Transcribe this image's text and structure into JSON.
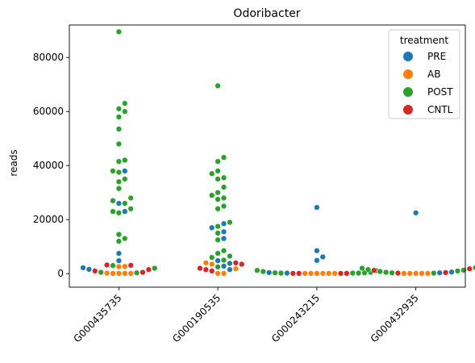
{
  "chart_data": {
    "type": "scatter",
    "subtype": "swarm",
    "title": "Odoribacter",
    "xlabel": "",
    "ylabel": "reads",
    "ylim": [
      -5000,
      92000
    ],
    "yticks": [
      0,
      20000,
      40000,
      60000,
      80000
    ],
    "ytick_labels": [
      "0",
      "20000",
      "40000",
      "60000",
      "80000"
    ],
    "categories": [
      "G000435735",
      "G000190535",
      "G000243215",
      "G000432935"
    ],
    "grid": false,
    "legend": {
      "title": "treatment",
      "position": "top-right",
      "entries": [
        {
          "name": "PRE",
          "color": "#1f77b4"
        },
        {
          "name": "AB",
          "color": "#ff7f0e"
        },
        {
          "name": "POST",
          "color": "#2ca02c"
        },
        {
          "name": "CNTL",
          "color": "#d62728"
        }
      ]
    },
    "series": [
      {
        "name": "PRE",
        "color": "#1f77b4",
        "points": [
          [
            0,
            38000
          ],
          [
            0,
            26000
          ],
          [
            0,
            23000
          ],
          [
            0,
            7500
          ],
          [
            0,
            4800
          ],
          [
            0,
            2200
          ],
          [
            0,
            1600
          ],
          [
            1,
            18500
          ],
          [
            1,
            17000
          ],
          [
            1,
            15500
          ],
          [
            1,
            13000
          ],
          [
            1,
            4800
          ],
          [
            1,
            3800
          ],
          [
            1,
            2800
          ],
          [
            1,
            1500
          ],
          [
            2,
            24500
          ],
          [
            2,
            8500
          ],
          [
            2,
            6200
          ],
          [
            2,
            4900
          ],
          [
            2,
            400
          ],
          [
            2,
            200
          ],
          [
            3,
            22500
          ],
          [
            3,
            600
          ],
          [
            3,
            300
          ]
        ]
      },
      {
        "name": "AB",
        "color": "#ff7f0e",
        "points": [
          [
            0,
            2700
          ],
          [
            0,
            2600
          ],
          [
            0,
            100
          ],
          [
            0,
            100
          ],
          [
            0,
            100
          ],
          [
            0,
            100
          ],
          [
            0,
            200
          ],
          [
            1,
            4000
          ],
          [
            1,
            3500
          ],
          [
            1,
            1800
          ],
          [
            1,
            100
          ],
          [
            1,
            100
          ],
          [
            2,
            100
          ],
          [
            2,
            100
          ],
          [
            2,
            100
          ],
          [
            2,
            100
          ],
          [
            2,
            100
          ],
          [
            2,
            100
          ],
          [
            3,
            100
          ],
          [
            3,
            100
          ],
          [
            3,
            100
          ],
          [
            3,
            100
          ],
          [
            3,
            100
          ]
        ]
      },
      {
        "name": "POST",
        "color": "#2ca02c",
        "points": [
          [
            0,
            89500
          ],
          [
            0,
            63000
          ],
          [
            0,
            61000
          ],
          [
            0,
            60000
          ],
          [
            0,
            58000
          ],
          [
            0,
            53500
          ],
          [
            0,
            48000
          ],
          [
            0,
            42000
          ],
          [
            0,
            41500
          ],
          [
            0,
            38000
          ],
          [
            0,
            37500
          ],
          [
            0,
            35000
          ],
          [
            0,
            34000
          ],
          [
            0,
            31500
          ],
          [
            0,
            28000
          ],
          [
            0,
            27000
          ],
          [
            0,
            26000
          ],
          [
            0,
            24000
          ],
          [
            0,
            23000
          ],
          [
            0,
            22500
          ],
          [
            0,
            14500
          ],
          [
            0,
            13000
          ],
          [
            0,
            12000
          ],
          [
            0,
            3000
          ],
          [
            0,
            2000
          ],
          [
            0,
            500
          ],
          [
            0,
            300
          ],
          [
            1,
            69500
          ],
          [
            1,
            43000
          ],
          [
            1,
            41500
          ],
          [
            1,
            38000
          ],
          [
            1,
            37000
          ],
          [
            1,
            35500
          ],
          [
            1,
            35000
          ],
          [
            1,
            32000
          ],
          [
            1,
            30000
          ],
          [
            1,
            29000
          ],
          [
            1,
            28000
          ],
          [
            1,
            27500
          ],
          [
            1,
            25000
          ],
          [
            1,
            24000
          ],
          [
            1,
            19000
          ],
          [
            1,
            17500
          ],
          [
            1,
            15000
          ],
          [
            1,
            12500
          ],
          [
            1,
            8500
          ],
          [
            1,
            7500
          ],
          [
            1,
            6500
          ],
          [
            1,
            6000
          ],
          [
            1,
            5000
          ],
          [
            1,
            2500
          ],
          [
            2,
            1200
          ],
          [
            2,
            800
          ],
          [
            2,
            500
          ],
          [
            2,
            300
          ],
          [
            2,
            200
          ],
          [
            2,
            200
          ],
          [
            2,
            200
          ],
          [
            2,
            300
          ],
          [
            2,
            1100
          ],
          [
            3,
            2200
          ],
          [
            3,
            2000
          ],
          [
            3,
            1500
          ],
          [
            3,
            1300
          ],
          [
            3,
            800
          ],
          [
            3,
            500
          ],
          [
            3,
            300
          ],
          [
            3,
            200
          ],
          [
            3,
            1000
          ]
        ]
      },
      {
        "name": "CNTL",
        "color": "#d62728",
        "points": [
          [
            0,
            3200
          ],
          [
            0,
            3100
          ],
          [
            0,
            1500
          ],
          [
            0,
            1000
          ],
          [
            0,
            500
          ],
          [
            1,
            4000
          ],
          [
            1,
            3500
          ],
          [
            1,
            2000
          ],
          [
            1,
            1500
          ],
          [
            1,
            1000
          ],
          [
            2,
            100
          ],
          [
            2,
            100
          ],
          [
            2,
            100
          ],
          [
            2,
            100
          ],
          [
            3,
            1800
          ],
          [
            3,
            1200
          ],
          [
            3,
            400
          ],
          [
            3,
            200
          ]
        ]
      }
    ]
  }
}
